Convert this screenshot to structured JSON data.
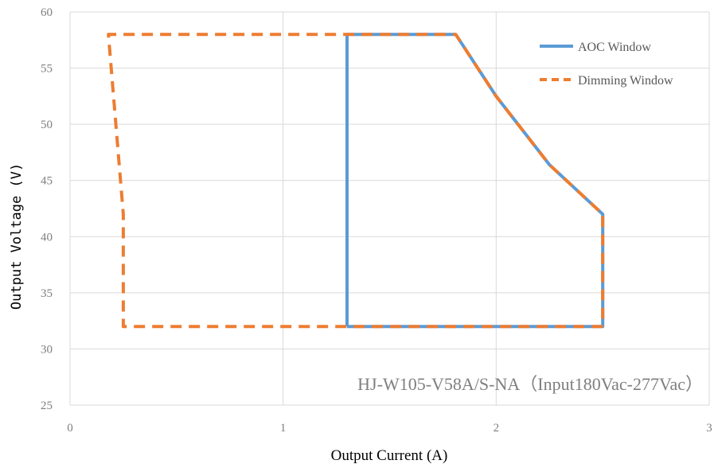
{
  "chart_data": {
    "type": "line",
    "title": "",
    "xlabel": "Output Current (A)",
    "ylabel": "Output Voltage (V)",
    "xlim": [
      0,
      3
    ],
    "ylim": [
      25,
      60
    ],
    "x_ticks": [
      "0",
      "1",
      "2",
      "3"
    ],
    "y_ticks": [
      "25",
      "30",
      "35",
      "40",
      "45",
      "50",
      "55",
      "60"
    ],
    "x_tick_values": [
      0,
      1,
      2,
      3
    ],
    "y_tick_values": [
      25,
      30,
      35,
      40,
      45,
      50,
      55,
      60
    ],
    "grid": true,
    "legend_position": "top-right",
    "annotation": "HJ-W105-V58A/S-NA（Input180Vac-277Vac）",
    "series": [
      {
        "name": "AOC Window",
        "color": "#5b9bd5",
        "style": "solid",
        "points": [
          [
            1.3,
            32
          ],
          [
            1.3,
            58
          ],
          [
            1.81,
            58
          ],
          [
            2.0,
            52.5
          ],
          [
            2.25,
            46.4
          ],
          [
            2.5,
            42
          ],
          [
            2.5,
            32
          ],
          [
            1.3,
            32
          ]
        ]
      },
      {
        "name": "Dimming Window",
        "color": "#ed7d31",
        "style": "dashed",
        "points": [
          [
            2.5,
            32
          ],
          [
            0.25,
            32
          ],
          [
            0.25,
            42
          ],
          [
            0.18,
            58
          ],
          [
            1.81,
            58
          ],
          [
            2.0,
            52.5
          ],
          [
            2.25,
            46.4
          ],
          [
            2.5,
            42
          ],
          [
            2.5,
            32
          ]
        ]
      }
    ]
  }
}
